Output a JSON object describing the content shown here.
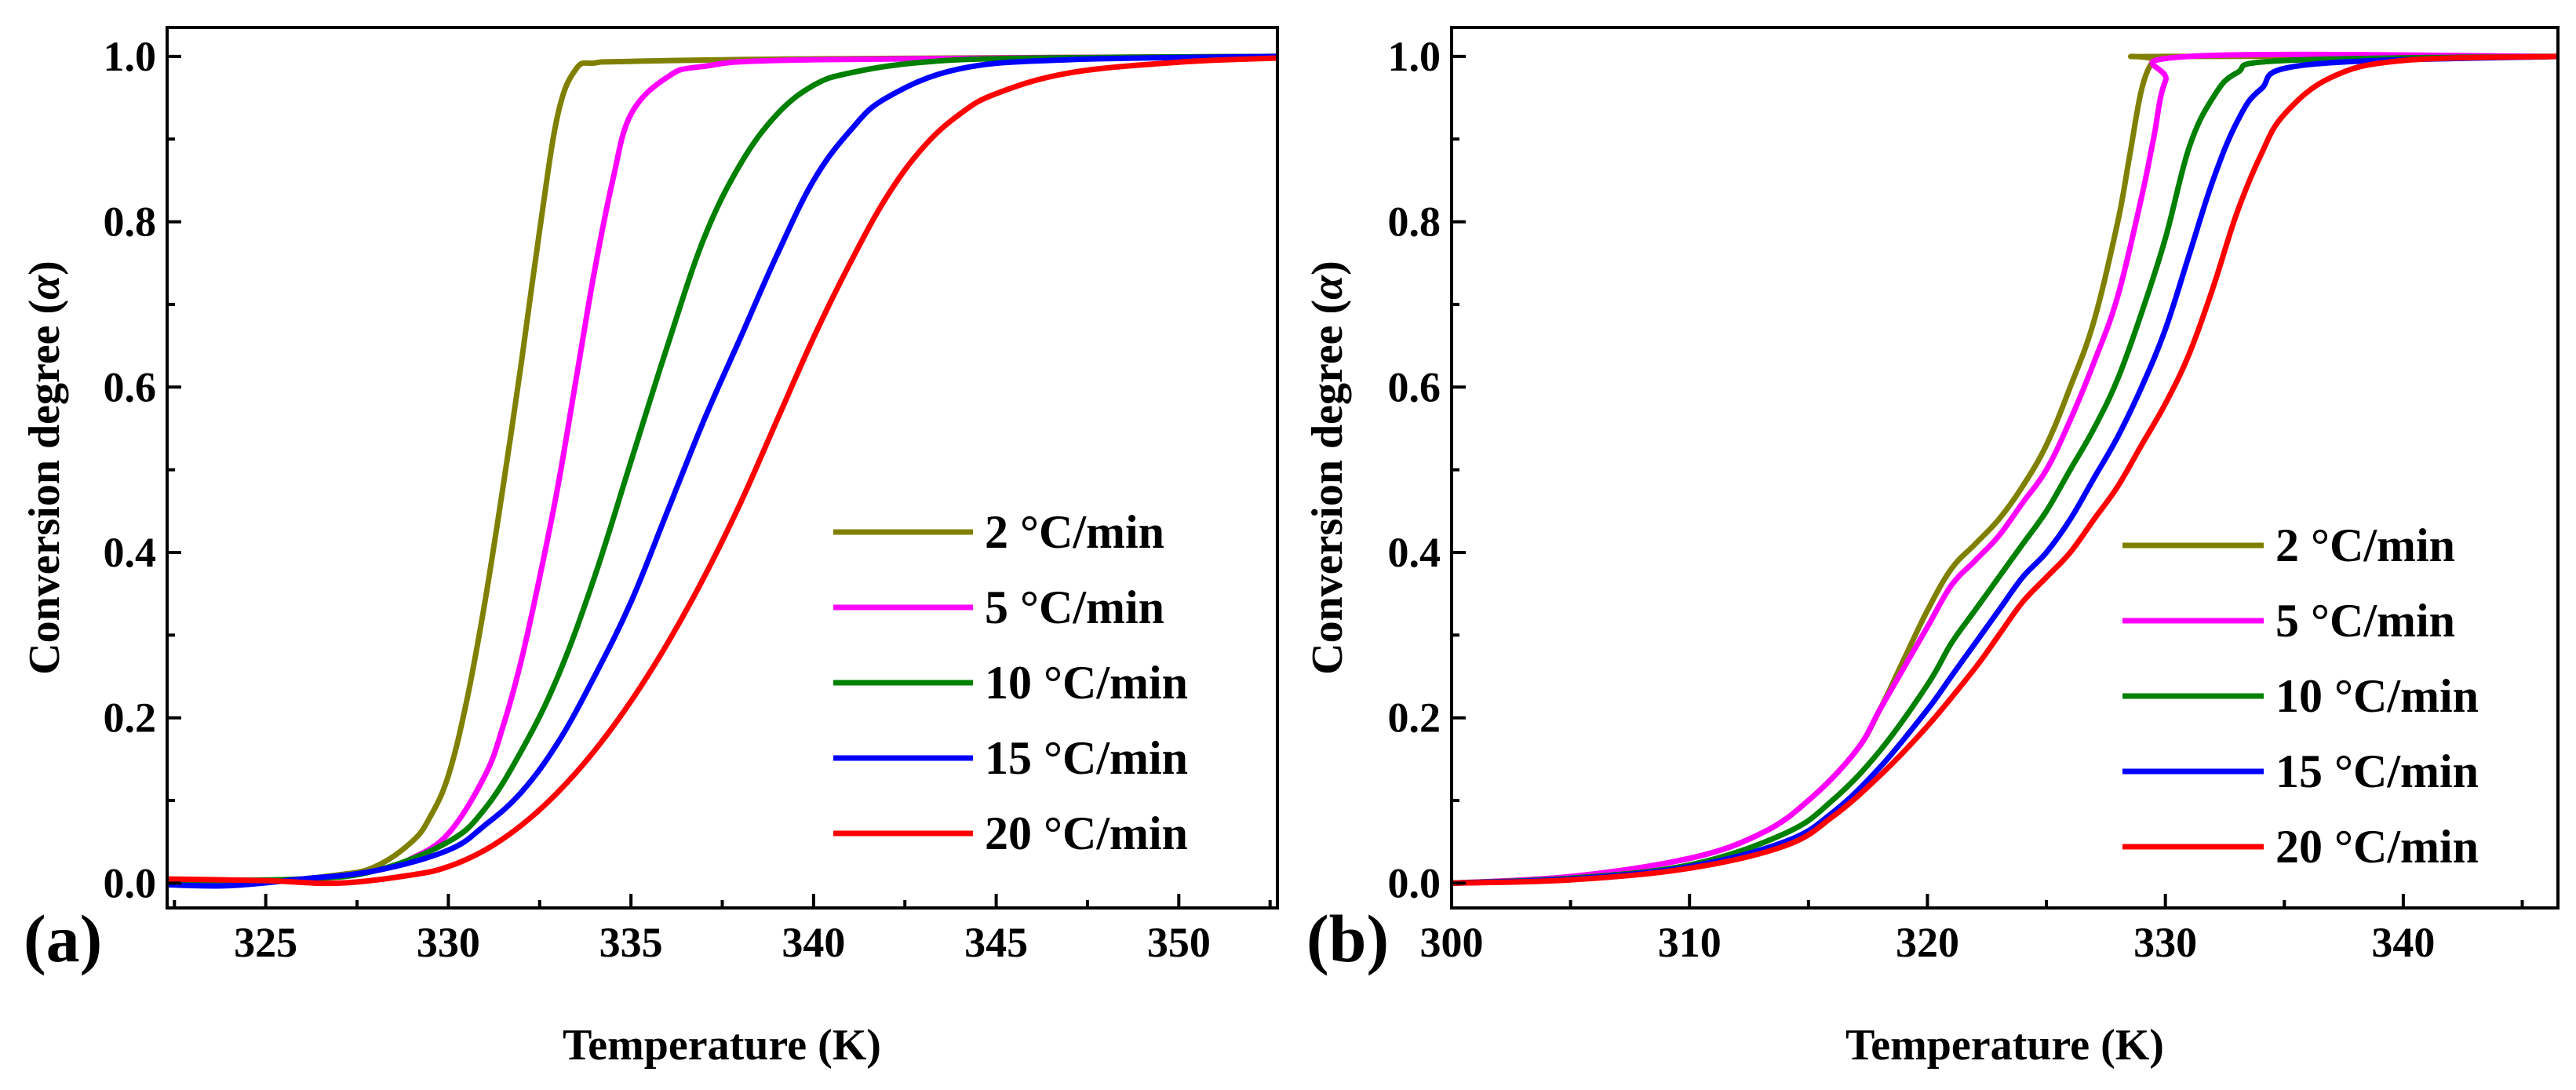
{
  "chart_data": [
    {
      "type": "line",
      "panel_label": "(a)",
      "xlabel": "Temperature (K)",
      "ylabel_main": "Conversion degree (",
      "ylabel_alpha": "α",
      "ylabel_close": ")",
      "xlim": [
        322.3,
        352.7
      ],
      "ylim": [
        -0.03,
        1.035
      ],
      "xticks": [
        325,
        330,
        335,
        340,
        345,
        350
      ],
      "yticks": [
        0.0,
        0.2,
        0.4,
        0.6,
        0.8,
        1.0
      ],
      "xtick_labels": [
        "325",
        "330",
        "335",
        "340",
        "345",
        "350"
      ],
      "ytick_labels": [
        "0.0",
        "0.2",
        "0.4",
        "0.6",
        "0.8",
        "1.0"
      ],
      "legend_position": "lower-right",
      "series": [
        {
          "name": "2 °C/min",
          "color": "#808000",
          "x": [
            322.3,
            325,
            327,
            328,
            329,
            329.5,
            330,
            330.5,
            331,
            331.5,
            332,
            332.5,
            333,
            333.5,
            334,
            335,
            340,
            352.7
          ],
          "y": [
            0.0,
            0.002,
            0.01,
            0.02,
            0.05,
            0.08,
            0.13,
            0.22,
            0.34,
            0.48,
            0.63,
            0.79,
            0.93,
            0.985,
            0.992,
            0.994,
            0.997,
            1.0
          ]
        },
        {
          "name": "5 °C/min",
          "color": "#ff00ff",
          "x": [
            322.3,
            326,
            328,
            329,
            330,
            331,
            331.5,
            332,
            332.5,
            333,
            333.5,
            334,
            334.5,
            335,
            336,
            337,
            340,
            352.7
          ],
          "y": [
            0.0,
            0.004,
            0.015,
            0.03,
            0.06,
            0.13,
            0.19,
            0.27,
            0.37,
            0.48,
            0.61,
            0.74,
            0.85,
            0.93,
            0.975,
            0.988,
            0.996,
            1.0
          ]
        },
        {
          "name": "10 °C/min",
          "color": "#008000",
          "x": [
            322.3,
            326,
            328,
            330,
            331,
            332,
            333,
            334,
            335,
            336,
            337,
            338,
            339,
            340,
            341,
            343,
            346,
            352.7
          ],
          "y": [
            0.003,
            0.005,
            0.015,
            0.05,
            0.09,
            0.16,
            0.25,
            0.37,
            0.51,
            0.65,
            0.78,
            0.87,
            0.93,
            0.965,
            0.98,
            0.993,
            0.998,
            1.0
          ]
        },
        {
          "name": "15 °C/min",
          "color": "#0000ff",
          "x": [
            322.3,
            324,
            326,
            328,
            330,
            331,
            332,
            333,
            334,
            335,
            336,
            337,
            338,
            339,
            340,
            341,
            342,
            344,
            347,
            352.7
          ],
          "y": [
            -0.002,
            -0.003,
            0.005,
            0.015,
            0.04,
            0.07,
            0.11,
            0.17,
            0.25,
            0.34,
            0.45,
            0.56,
            0.66,
            0.76,
            0.85,
            0.91,
            0.95,
            0.985,
            0.996,
            1.0
          ]
        },
        {
          "name": "20 °C/min",
          "color": "#ff0000",
          "x": [
            322.3,
            325,
            327,
            329,
            330,
            331,
            332,
            333,
            334,
            335,
            336,
            337,
            338,
            339,
            340,
            341,
            342,
            343,
            344,
            345,
            347,
            350,
            352.7
          ],
          "y": [
            0.005,
            0.003,
            0.0,
            0.01,
            0.02,
            0.04,
            0.07,
            0.11,
            0.16,
            0.22,
            0.29,
            0.37,
            0.46,
            0.56,
            0.66,
            0.75,
            0.83,
            0.89,
            0.93,
            0.955,
            0.98,
            0.993,
            0.998
          ]
        }
      ]
    },
    {
      "type": "line",
      "panel_label": "(b)",
      "xlabel": "Temperature (K)",
      "ylabel_main": "Conversion degree (",
      "ylabel_alpha": "α",
      "ylabel_close": ")",
      "xlim": [
        300,
        346.5
      ],
      "ylim": [
        -0.03,
        1.035
      ],
      "xticks": [
        300,
        310,
        320,
        330,
        340
      ],
      "yticks": [
        0.0,
        0.2,
        0.4,
        0.6,
        0.8,
        1.0
      ],
      "xtick_labels": [
        "300",
        "310",
        "320",
        "330",
        "340"
      ],
      "ytick_labels": [
        "0.0",
        "0.2",
        "0.4",
        "0.6",
        "0.8",
        "1.0"
      ],
      "legend_position": "lower-right",
      "series": [
        {
          "name": "2 °C/min",
          "color": "#808000",
          "x": [
            300,
            305,
            310,
            313,
            315,
            317,
            318,
            319,
            320,
            321,
            322,
            323,
            324,
            325,
            326,
            327,
            328,
            328.5,
            329,
            329.5,
            330,
            346.5
          ],
          "y": [
            0.0,
            0.008,
            0.03,
            0.06,
            0.1,
            0.16,
            0.21,
            0.27,
            0.33,
            0.38,
            0.41,
            0.44,
            0.48,
            0.53,
            0.6,
            0.68,
            0.8,
            0.88,
            0.96,
            0.995,
            1.0,
            1.0
          ]
        },
        {
          "name": "5 °C/min",
          "color": "#ff00ff",
          "x": [
            300,
            305,
            310,
            313,
            315,
            317,
            318,
            319,
            320,
            321,
            322,
            323,
            324,
            325,
            326,
            327,
            328,
            329,
            329.5,
            330,
            331,
            346.5
          ],
          "y": [
            0.0,
            0.008,
            0.03,
            0.06,
            0.1,
            0.16,
            0.21,
            0.26,
            0.31,
            0.36,
            0.39,
            0.42,
            0.46,
            0.5,
            0.56,
            0.63,
            0.71,
            0.83,
            0.9,
            0.97,
            1.0,
            1.0
          ]
        },
        {
          "name": "10 °C/min",
          "color": "#008000",
          "x": [
            300,
            305,
            310,
            314,
            316,
            318,
            320,
            321,
            322,
            323,
            324,
            325,
            326,
            327,
            328,
            329,
            330,
            331,
            332,
            333,
            335,
            346.5
          ],
          "y": [
            0.0,
            0.006,
            0.022,
            0.06,
            0.1,
            0.16,
            0.24,
            0.29,
            0.33,
            0.37,
            0.41,
            0.45,
            0.5,
            0.55,
            0.61,
            0.69,
            0.78,
            0.89,
            0.95,
            0.98,
            0.995,
            1.0
          ]
        },
        {
          "name": "15 °C/min",
          "color": "#0000ff",
          "x": [
            300,
            305,
            310,
            314,
            316,
            318,
            320,
            321,
            322,
            323,
            324,
            325,
            326,
            327,
            328,
            329,
            330,
            331,
            332,
            333,
            334,
            336,
            346.5
          ],
          "y": [
            0.0,
            0.005,
            0.02,
            0.05,
            0.085,
            0.14,
            0.21,
            0.25,
            0.29,
            0.33,
            0.37,
            0.4,
            0.44,
            0.49,
            0.54,
            0.6,
            0.67,
            0.76,
            0.85,
            0.92,
            0.96,
            0.99,
            1.0
          ]
        },
        {
          "name": "20 °C/min",
          "color": "#ff0000",
          "x": [
            300,
            305,
            310,
            314,
            316,
            318,
            320,
            322,
            323,
            324,
            325,
            326,
            327,
            328,
            329,
            330,
            331,
            332,
            333,
            334,
            335,
            337,
            340,
            346.5
          ],
          "y": [
            0.0,
            0.004,
            0.018,
            0.045,
            0.08,
            0.13,
            0.19,
            0.26,
            0.3,
            0.34,
            0.37,
            0.4,
            0.44,
            0.48,
            0.53,
            0.58,
            0.64,
            0.72,
            0.81,
            0.88,
            0.93,
            0.975,
            0.995,
            1.0
          ]
        }
      ]
    }
  ]
}
